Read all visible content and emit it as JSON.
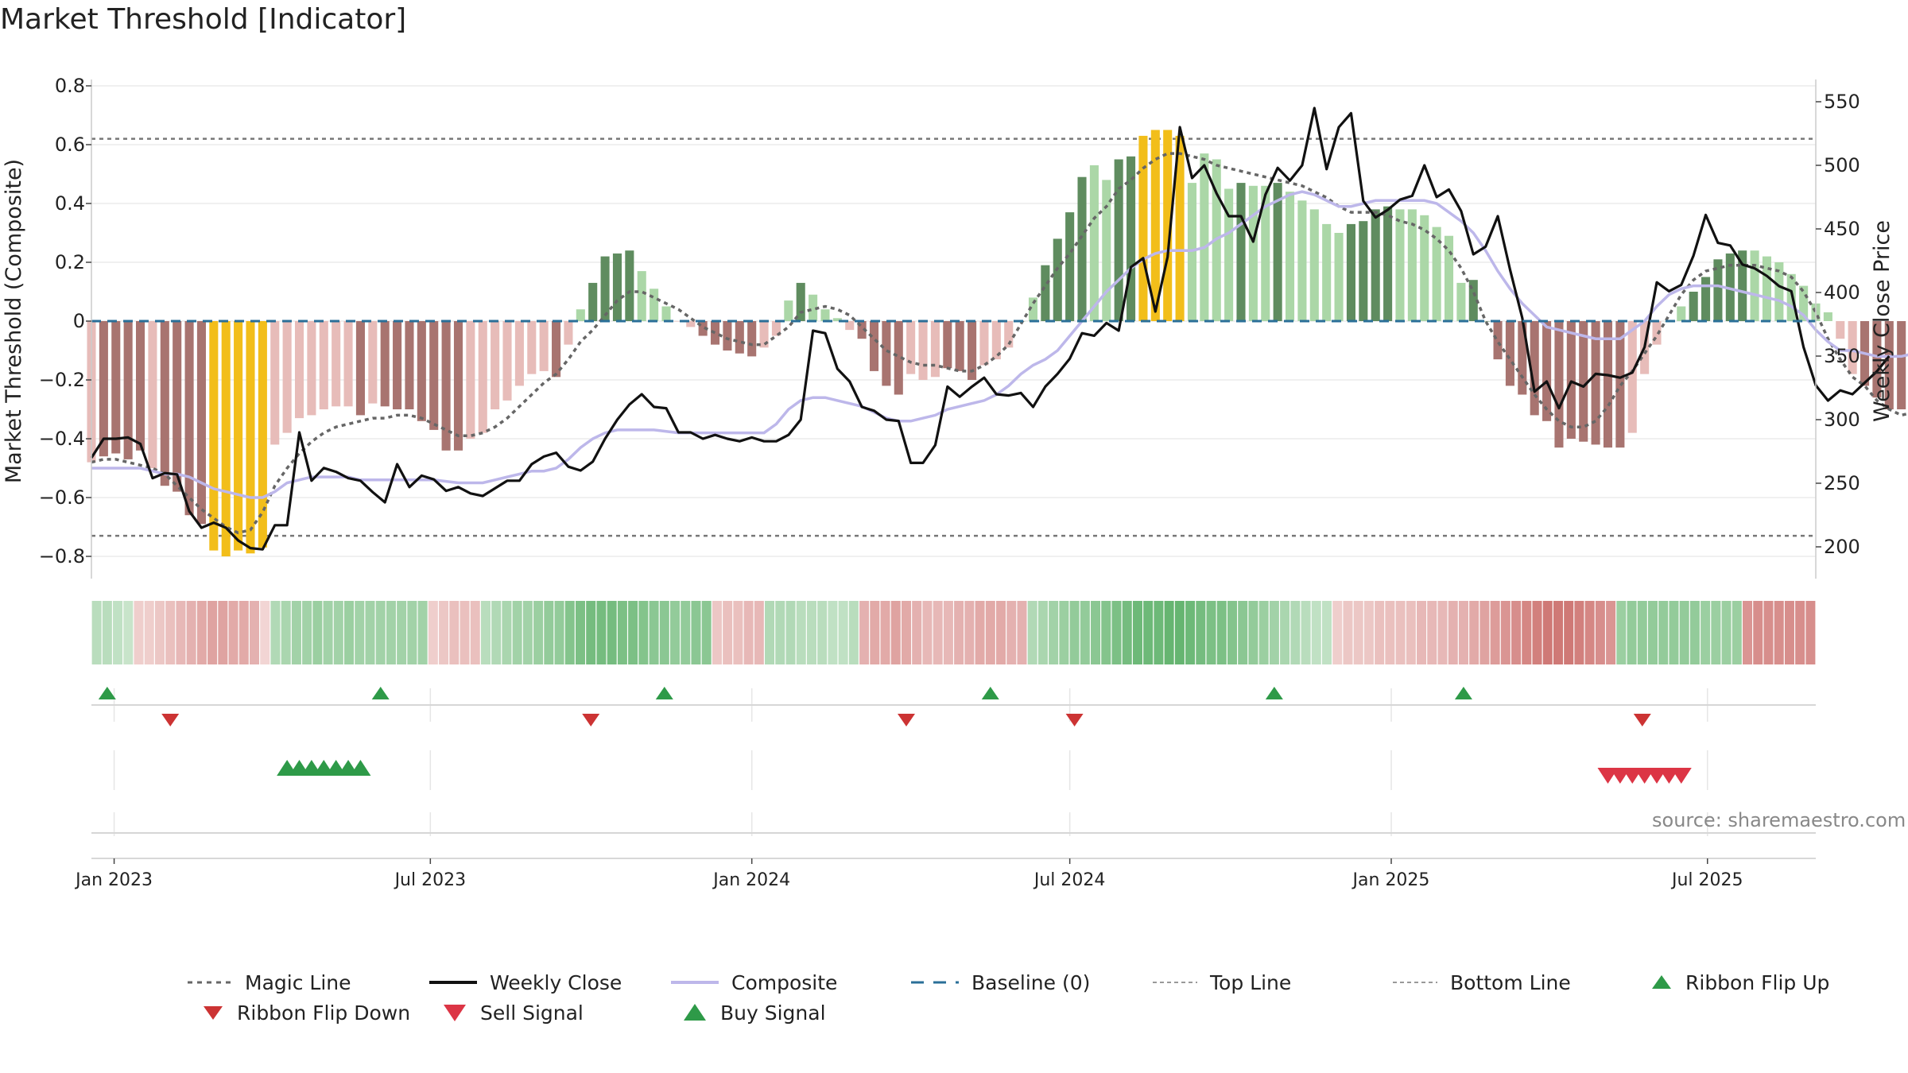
{
  "title": "Market Threshold [Indicator]",
  "source": "source: sharemaestro.com",
  "colors": {
    "bull_dark": "#5f8c5f",
    "bull_light": "#abd7a7",
    "bear_dark": "#a87470",
    "bear_light": "#e7bcb9",
    "extreme": "#f2be1a",
    "magic": "#666666",
    "close": "#111111",
    "composite": "#bdb7ea",
    "baseline": "#2a6f98",
    "buy": "#2e9a48",
    "sell": "#cc3333"
  },
  "legend": {
    "magic_line": "Magic Line",
    "weekly_close": "Weekly Close",
    "composite": "Composite",
    "baseline": "Baseline (0)",
    "top_line": "Top Line",
    "bottom_line": "Bottom Line",
    "ribbon_flip_up": "Ribbon Flip Up",
    "ribbon_flip_down": "Ribbon Flip Down",
    "sell_signal": "Sell Signal",
    "buy_signal": "Buy Signal"
  },
  "chart_data": {
    "type": "bar",
    "ylabel": "Market Threshold (Composite)",
    "y2label": "Weekly Close Price",
    "ylim": [
      -0.88,
      0.88
    ],
    "y2lim": [
      181,
      566
    ],
    "yticks": [
      0.8,
      0.6,
      0.4,
      0.2,
      0,
      -0.2,
      -0.4,
      -0.6,
      -0.8
    ],
    "ytick_labels": [
      "0.8",
      "0.6",
      "0.4",
      "0.2",
      "0",
      "−0.2",
      "−0.4",
      "−0.6",
      "−0.8"
    ],
    "y2ticks": [
      550,
      500,
      450,
      400,
      350,
      300,
      250,
      200
    ],
    "y2tick_labels": [
      "550",
      "500",
      "450",
      "400",
      "350",
      "300",
      "250",
      "200"
    ],
    "top_line": 0.62,
    "bottom_line": -0.73,
    "baseline": 0,
    "xlim": [
      "2022-12-19",
      "2025-09-01"
    ],
    "xticks": [
      "2023-01-01",
      "2023-07-01",
      "2024-01-01",
      "2024-07-01",
      "2025-01-01",
      "2025-07-01"
    ],
    "xtick_labels": [
      "Jan 2023",
      "Jul 2023",
      "Jan 2024",
      "Jul 2024",
      "Jan 2025",
      "Jul 2025"
    ],
    "start_week": "2022-12-19",
    "bars": [
      -0.48,
      -0.46,
      -0.45,
      -0.47,
      -0.44,
      -0.5,
      -0.56,
      -0.58,
      -0.66,
      -0.69,
      -0.78,
      -0.8,
      -0.78,
      -0.79,
      -0.77,
      -0.42,
      -0.38,
      -0.33,
      -0.32,
      -0.3,
      -0.29,
      -0.29,
      -0.32,
      -0.28,
      -0.29,
      -0.3,
      -0.3,
      -0.34,
      -0.37,
      -0.44,
      -0.44,
      -0.4,
      -0.38,
      -0.3,
      -0.27,
      -0.22,
      -0.18,
      -0.17,
      -0.19,
      -0.08,
      0.04,
      0.13,
      0.22,
      0.23,
      0.24,
      0.17,
      0.11,
      0.05,
      0.0,
      -0.02,
      -0.05,
      -0.08,
      -0.1,
      -0.11,
      -0.12,
      -0.09,
      -0.05,
      0.07,
      0.13,
      0.09,
      0.04,
      0.01,
      -0.03,
      -0.06,
      -0.17,
      -0.22,
      -0.25,
      -0.18,
      -0.2,
      -0.19,
      -0.16,
      -0.17,
      -0.2,
      -0.15,
      -0.13,
      -0.09,
      0.0,
      0.08,
      0.19,
      0.28,
      0.37,
      0.49,
      0.53,
      0.48,
      0.55,
      0.56,
      0.63,
      0.65,
      0.65,
      0.63,
      0.47,
      0.57,
      0.55,
      0.45,
      0.47,
      0.46,
      0.46,
      0.47,
      0.44,
      0.41,
      0.38,
      0.33,
      0.3,
      0.33,
      0.34,
      0.38,
      0.39,
      0.38,
      0.38,
      0.36,
      0.32,
      0.29,
      0.13,
      0.14,
      0.0,
      -0.13,
      -0.22,
      -0.25,
      -0.32,
      -0.34,
      -0.43,
      -0.4,
      -0.41,
      -0.42,
      -0.43,
      -0.43,
      -0.38,
      -0.18,
      -0.08,
      0.0,
      0.05,
      0.1,
      0.15,
      0.21,
      0.23,
      0.24,
      0.24,
      0.22,
      0.2,
      0.16,
      0.12,
      0.06,
      0.03,
      -0.06,
      -0.18,
      -0.22,
      -0.26,
      -0.3,
      -0.3,
      -0.38,
      -0.42,
      -0.45,
      -0.44,
      -0.39
    ],
    "bar_colors": [
      "bear_light",
      "bear_dark",
      "bear_dark",
      "bear_dark",
      "bear_dark",
      "bear_light",
      "bear_dark",
      "bear_dark",
      "bear_dark",
      "bear_dark",
      "extreme",
      "extreme",
      "extreme",
      "extreme",
      "extreme",
      "bear_light",
      "bear_light",
      "bear_light",
      "bear_light",
      "bear_light",
      "bear_light",
      "bear_light",
      "bear_dark",
      "bear_light",
      "bear_dark",
      "bear_dark",
      "bear_dark",
      "bear_dark",
      "bear_dark",
      "bear_dark",
      "bear_dark",
      "bear_light",
      "bear_light",
      "bear_light",
      "bear_light",
      "bear_light",
      "bear_light",
      "bear_light",
      "bear_dark",
      "bear_light",
      "bull_light",
      "bull_dark",
      "bull_dark",
      "bull_dark",
      "bull_dark",
      "bull_light",
      "bull_light",
      "bull_light",
      "bear_light",
      "bear_light",
      "bear_dark",
      "bear_dark",
      "bear_dark",
      "bear_dark",
      "bear_dark",
      "bear_light",
      "bear_light",
      "bull_light",
      "bull_dark",
      "bull_light",
      "bull_light",
      "bull_light",
      "bear_light",
      "bear_dark",
      "bear_dark",
      "bear_dark",
      "bear_dark",
      "bear_light",
      "bear_light",
      "bear_light",
      "bear_dark",
      "bear_dark",
      "bear_dark",
      "bear_light",
      "bear_light",
      "bear_light",
      "bull_light",
      "bull_light",
      "bull_dark",
      "bull_dark",
      "bull_dark",
      "bull_dark",
      "bull_light",
      "bull_light",
      "bull_dark",
      "bull_dark",
      "extreme",
      "extreme",
      "extreme",
      "extreme",
      "bull_light",
      "bull_light",
      "bull_light",
      "bull_light",
      "bull_dark",
      "bull_light",
      "bull_light",
      "bull_dark",
      "bull_light",
      "bull_light",
      "bull_light",
      "bull_light",
      "bull_light",
      "bull_dark",
      "bull_dark",
      "bull_dark",
      "bull_dark",
      "bull_light",
      "bull_light",
      "bull_light",
      "bull_light",
      "bull_light",
      "bull_light",
      "bull_dark",
      "bull_dark",
      "bear_dark",
      "bear_dark",
      "bear_dark",
      "bear_dark",
      "bear_dark",
      "bear_dark",
      "bear_dark",
      "bear_dark",
      "bear_dark",
      "bear_dark",
      "bear_dark",
      "bear_light",
      "bear_light",
      "bear_light",
      "bull_light",
      "bull_light",
      "bull_dark",
      "bull_dark",
      "bull_dark",
      "bull_dark",
      "bull_dark",
      "bull_light",
      "bull_light",
      "bull_light",
      "bull_light",
      "bull_light",
      "bull_light",
      "bull_light",
      "bear_light",
      "bear_light",
      "bear_dark",
      "bear_dark",
      "bear_dark",
      "bear_dark",
      "bear_dark",
      "bear_dark",
      "bear_light",
      "bear_light"
    ],
    "composite": [
      -0.5,
      -0.5,
      -0.5,
      -0.5,
      -0.5,
      -0.51,
      -0.52,
      -0.52,
      -0.53,
      -0.55,
      -0.57,
      -0.58,
      -0.59,
      -0.6,
      -0.6,
      -0.58,
      -0.55,
      -0.54,
      -0.53,
      -0.53,
      -0.53,
      -0.53,
      -0.54,
      -0.54,
      -0.54,
      -0.54,
      -0.54,
      -0.54,
      -0.54,
      -0.545,
      -0.55,
      -0.55,
      -0.55,
      -0.54,
      -0.53,
      -0.52,
      -0.51,
      -0.51,
      -0.5,
      -0.47,
      -0.43,
      -0.4,
      -0.38,
      -0.37,
      -0.37,
      -0.37,
      -0.37,
      -0.375,
      -0.38,
      -0.38,
      -0.38,
      -0.38,
      -0.38,
      -0.38,
      -0.38,
      -0.38,
      -0.35,
      -0.3,
      -0.27,
      -0.26,
      -0.26,
      -0.27,
      -0.28,
      -0.29,
      -0.31,
      -0.33,
      -0.34,
      -0.34,
      -0.33,
      -0.32,
      -0.3,
      -0.29,
      -0.28,
      -0.27,
      -0.25,
      -0.22,
      -0.18,
      -0.15,
      -0.13,
      -0.1,
      -0.05,
      0.0,
      0.05,
      0.1,
      0.14,
      0.18,
      0.21,
      0.23,
      0.24,
      0.24,
      0.24,
      0.25,
      0.28,
      0.3,
      0.33,
      0.36,
      0.39,
      0.41,
      0.43,
      0.44,
      0.43,
      0.41,
      0.39,
      0.39,
      0.4,
      0.41,
      0.41,
      0.41,
      0.41,
      0.41,
      0.4,
      0.37,
      0.34,
      0.3,
      0.24,
      0.17,
      0.11,
      0.06,
      0.02,
      -0.02,
      -0.03,
      -0.04,
      -0.05,
      -0.06,
      -0.06,
      -0.06,
      -0.03,
      0.0,
      0.05,
      0.09,
      0.11,
      0.12,
      0.12,
      0.12,
      0.11,
      0.1,
      0.09,
      0.08,
      0.07,
      0.05,
      0.02,
      -0.03,
      -0.07,
      -0.1,
      -0.1,
      -0.11,
      -0.12,
      -0.12,
      -0.12,
      -0.11
    ],
    "magic_line": [
      -0.48,
      -0.47,
      -0.47,
      -0.48,
      -0.49,
      -0.5,
      -0.52,
      -0.56,
      -0.6,
      -0.64,
      -0.67,
      -0.7,
      -0.72,
      -0.71,
      -0.65,
      -0.56,
      -0.5,
      -0.45,
      -0.41,
      -0.38,
      -0.36,
      -0.35,
      -0.34,
      -0.33,
      -0.33,
      -0.32,
      -0.32,
      -0.33,
      -0.35,
      -0.37,
      -0.39,
      -0.39,
      -0.38,
      -0.36,
      -0.33,
      -0.29,
      -0.25,
      -0.21,
      -0.18,
      -0.13,
      -0.07,
      -0.03,
      0.02,
      0.07,
      0.1,
      0.1,
      0.08,
      0.06,
      0.04,
      0.01,
      -0.02,
      -0.04,
      -0.06,
      -0.07,
      -0.08,
      -0.08,
      -0.05,
      -0.02,
      0.03,
      0.04,
      0.05,
      0.04,
      0.02,
      -0.02,
      -0.06,
      -0.1,
      -0.12,
      -0.14,
      -0.15,
      -0.15,
      -0.16,
      -0.17,
      -0.17,
      -0.15,
      -0.12,
      -0.08,
      -0.01,
      0.06,
      0.12,
      0.18,
      0.23,
      0.29,
      0.35,
      0.39,
      0.45,
      0.48,
      0.52,
      0.55,
      0.57,
      0.57,
      0.56,
      0.55,
      0.53,
      0.52,
      0.51,
      0.5,
      0.49,
      0.48,
      0.47,
      0.46,
      0.44,
      0.42,
      0.39,
      0.37,
      0.37,
      0.37,
      0.36,
      0.34,
      0.33,
      0.31,
      0.28,
      0.24,
      0.18,
      0.1,
      0.0,
      -0.07,
      -0.13,
      -0.19,
      -0.25,
      -0.3,
      -0.34,
      -0.36,
      -0.36,
      -0.34,
      -0.29,
      -0.22,
      -0.17,
      -0.11,
      -0.05,
      0.02,
      0.09,
      0.14,
      0.17,
      0.18,
      0.19,
      0.19,
      0.19,
      0.18,
      0.17,
      0.15,
      0.1,
      0.03,
      -0.06,
      -0.13,
      -0.19,
      -0.22,
      -0.27,
      -0.3,
      -0.32,
      -0.31
    ],
    "weekly_close": [
      270,
      285,
      285,
      286,
      281,
      254,
      258,
      257,
      228,
      215,
      219,
      215,
      205,
      199,
      198,
      217,
      217,
      290,
      252,
      262,
      259,
      254,
      252,
      243,
      235,
      265,
      247,
      256,
      253,
      244,
      247,
      242,
      240,
      246,
      252,
      252,
      265,
      271,
      274,
      263,
      260,
      267,
      285,
      300,
      312,
      320,
      310,
      309,
      290,
      290,
      285,
      288,
      285,
      283,
      286,
      283,
      283,
      288,
      300,
      370,
      368,
      340,
      330,
      310,
      307,
      300,
      299,
      266,
      266,
      280,
      326,
      318,
      326,
      333,
      320,
      319,
      321,
      310,
      326,
      336,
      348,
      368,
      366,
      376,
      370,
      420,
      427,
      385,
      428,
      530,
      490,
      500,
      478,
      460,
      460,
      440,
      477,
      498,
      488,
      500,
      545,
      497,
      530,
      541,
      472,
      459,
      465,
      473,
      476,
      500,
      475,
      481,
      464,
      430,
      436,
      460,
      418,
      380,
      322,
      330,
      309,
      330,
      326,
      336,
      335,
      333,
      337,
      357,
      408,
      401,
      406,
      429,
      461,
      439,
      437,
      422,
      419,
      413,
      405,
      401,
      357,
      327,
      315,
      323,
      320,
      329,
      338,
      350
    ]
  },
  "ribbon": [
    0.3,
    0.3,
    0.25,
    0.2,
    -0.15,
    -0.15,
    -0.2,
    -0.25,
    -0.3,
    -0.35,
    -0.4,
    -0.45,
    -0.45,
    -0.4,
    -0.4,
    -0.35,
    -0.1,
    0.35,
    0.4,
    0.45,
    0.45,
    0.5,
    0.45,
    0.45,
    0.5,
    0.45,
    0.45,
    0.45,
    0.45,
    0.45,
    0.45,
    0.45,
    -0.15,
    -0.2,
    -0.25,
    -0.25,
    -0.25,
    0.3,
    0.35,
    0.4,
    0.45,
    0.45,
    0.5,
    0.55,
    0.55,
    0.65,
    0.7,
    0.75,
    0.75,
    0.75,
    0.7,
    0.7,
    0.65,
    0.6,
    0.6,
    0.55,
    0.55,
    0.6,
    0.6,
    -0.2,
    -0.25,
    -0.25,
    -0.3,
    -0.3,
    0.35,
    0.35,
    0.35,
    0.3,
    0.3,
    0.3,
    0.25,
    0.25,
    0.3,
    -0.35,
    -0.4,
    -0.4,
    -0.45,
    -0.4,
    -0.35,
    -0.3,
    -0.3,
    -0.3,
    -0.35,
    -0.35,
    -0.4,
    -0.4,
    -0.4,
    -0.35,
    -0.35,
    0.35,
    0.4,
    0.45,
    0.5,
    0.55,
    0.55,
    0.6,
    0.65,
    0.7,
    0.75,
    0.8,
    0.8,
    0.8,
    0.85,
    0.85,
    0.8,
    0.75,
    0.7,
    0.7,
    0.65,
    0.6,
    0.55,
    0.5,
    0.45,
    0.4,
    0.35,
    0.3,
    0.25,
    0.25,
    -0.15,
    -0.2,
    -0.2,
    -0.2,
    -0.25,
    -0.25,
    -0.25,
    -0.25,
    -0.3,
    -0.3,
    -0.3,
    -0.35,
    -0.35,
    -0.4,
    -0.45,
    -0.5,
    -0.55,
    -0.6,
    -0.65,
    -0.7,
    -0.75,
    -0.75,
    -0.75,
    -0.7,
    -0.65,
    -0.6,
    -0.55,
    0.5,
    0.55,
    0.55,
    0.55,
    0.55,
    0.55,
    0.55,
    0.55,
    0.5,
    0.5,
    0.5,
    0.5,
    -0.55,
    -0.6,
    -0.6,
    -0.6,
    -0.6,
    -0.6,
    -0.6
  ],
  "ribbon_flip_up_weeks": [
    1,
    27,
    54,
    85,
    112,
    130
  ],
  "ribbon_flip_down_weeks": [
    7,
    47,
    77,
    93,
    147,
    194
  ],
  "buy_signal_weeks": [
    16,
    17,
    18,
    19,
    20,
    21,
    22
  ],
  "sell_signal_weeks": [
    124,
    125,
    126,
    127,
    128,
    129,
    130
  ]
}
